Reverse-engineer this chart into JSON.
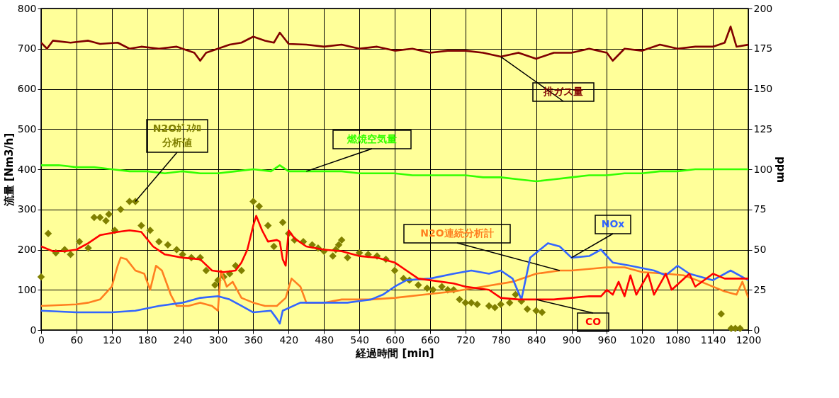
{
  "chart_data": {
    "type": "line",
    "xlabel": "経過時間 [min]",
    "ylabel": "流量 [Nm3/h]",
    "y2label": "ppm",
    "xlim": [
      0,
      1200
    ],
    "xticks": [
      0,
      60,
      120,
      180,
      240,
      300,
      360,
      420,
      480,
      540,
      600,
      660,
      720,
      780,
      840,
      900,
      960,
      1020,
      1080,
      1140,
      1200
    ],
    "ylim": [
      0,
      800
    ],
    "yticks": [
      0,
      100,
      200,
      300,
      400,
      500,
      600,
      700,
      800
    ],
    "y2lim": [
      0,
      200
    ],
    "y2ticks": [
      0,
      25,
      50,
      75,
      100,
      125,
      150,
      175,
      200
    ],
    "grid": true,
    "line_style": "solid",
    "series": [
      {
        "name": "排ガス量",
        "color": "#800000",
        "x": [
          0,
          10,
          20,
          50,
          80,
          100,
          130,
          150,
          170,
          200,
          230,
          260,
          270,
          280,
          320,
          340,
          360,
          380,
          395,
          405,
          420,
          450,
          480,
          510,
          540,
          570,
          600,
          630,
          660,
          690,
          720,
          750,
          780,
          810,
          840,
          870,
          900,
          930,
          960,
          970,
          990,
          1020,
          1050,
          1080,
          1110,
          1140,
          1160,
          1170,
          1180,
          1200
        ],
        "values": [
          715,
          700,
          720,
          715,
          720,
          712,
          715,
          700,
          705,
          700,
          705,
          690,
          670,
          690,
          710,
          715,
          730,
          720,
          715,
          740,
          712,
          710,
          705,
          710,
          700,
          705,
          695,
          700,
          690,
          695,
          695,
          690,
          680,
          690,
          675,
          690,
          690,
          700,
          690,
          670,
          700,
          695,
          710,
          700,
          705,
          705,
          715,
          755,
          705,
          710
        ]
      },
      {
        "name": "燃焼空気量",
        "color": "#33ff00",
        "x": [
          0,
          30,
          60,
          90,
          120,
          150,
          180,
          210,
          240,
          270,
          300,
          330,
          360,
          390,
          405,
          420,
          450,
          480,
          510,
          540,
          570,
          600,
          630,
          660,
          690,
          720,
          750,
          780,
          810,
          840,
          870,
          900,
          930,
          960,
          990,
          1020,
          1050,
          1080,
          1110,
          1140,
          1170,
          1200
        ],
        "values": [
          410,
          410,
          405,
          405,
          400,
          395,
          395,
          390,
          395,
          390,
          390,
          395,
          400,
          395,
          410,
          395,
          395,
          395,
          395,
          390,
          390,
          390,
          385,
          385,
          385,
          385,
          380,
          380,
          375,
          370,
          375,
          380,
          385,
          385,
          390,
          390,
          395,
          395,
          400,
          400,
          400,
          400
        ]
      },
      {
        "name": "N2Oｶﾞｽｸﾛ分析値",
        "type": "scatter",
        "marker": "diamond",
        "axis": "y2",
        "color": "#808000",
        "x": [
          0,
          12,
          25,
          40,
          50,
          65,
          80,
          90,
          100,
          110,
          115,
          125,
          135,
          150,
          160,
          170,
          185,
          200,
          215,
          230,
          240,
          255,
          270,
          280,
          295,
          300,
          310,
          320,
          330,
          340,
          360,
          370,
          385,
          395,
          410,
          420,
          430,
          445,
          460,
          470,
          480,
          495,
          500,
          505,
          510,
          520,
          540,
          555,
          570,
          585,
          600,
          615,
          625,
          640,
          655,
          665,
          680,
          690,
          700,
          710,
          720,
          730,
          740,
          760,
          770,
          780,
          795,
          805,
          815,
          825,
          840,
          850,
          1154,
          1171,
          1178,
          1186
        ],
        "values": [
          33,
          60,
          48,
          50,
          47,
          55,
          51,
          70,
          70,
          68,
          72,
          62,
          75,
          80,
          80,
          65,
          62,
          55,
          53,
          50,
          47,
          45,
          45,
          37,
          28,
          31,
          33,
          35,
          40,
          37,
          80,
          77,
          65,
          52,
          67,
          60,
          56,
          55,
          53,
          51,
          49,
          46,
          50,
          53,
          56,
          45,
          48,
          47,
          46,
          44,
          37,
          32,
          31,
          28,
          26,
          25,
          27,
          25,
          25,
          19,
          17,
          17,
          16,
          15,
          14,
          16,
          17,
          22,
          18,
          13,
          12,
          11,
          10,
          1,
          1,
          1
        ]
      },
      {
        "name": "N2O連続分析計",
        "axis": "y2",
        "color": "#ff7f20",
        "x": [
          0,
          60,
          80,
          100,
          120,
          130,
          135,
          145,
          160,
          175,
          185,
          195,
          205,
          220,
          230,
          250,
          270,
          290,
          300,
          305,
          315,
          325,
          340,
          360,
          380,
          400,
          415,
          425,
          440,
          450,
          480,
          510,
          560,
          600,
          650,
          700,
          750,
          800,
          840,
          880,
          900,
          960,
          990,
          1020,
          1060,
          1090,
          1120,
          1160,
          1180,
          1190,
          1200
        ],
        "values": [
          15,
          16,
          17,
          19,
          27,
          40,
          45,
          44,
          37,
          35,
          25,
          40,
          37,
          22,
          15,
          15,
          17,
          15,
          12,
          37,
          27,
          30,
          20,
          17,
          15,
          15,
          20,
          32,
          27,
          17,
          17,
          19,
          19,
          20,
          22,
          24,
          27,
          30,
          35,
          37,
          37,
          39,
          39,
          36,
          35,
          34,
          30,
          24,
          22,
          30,
          20
        ]
      },
      {
        "name": "NOx",
        "axis": "y2",
        "color": "#3366ff",
        "x": [
          0,
          60,
          120,
          160,
          200,
          240,
          270,
          300,
          320,
          340,
          360,
          390,
          400,
          405,
          410,
          440,
          480,
          520,
          560,
          580,
          600,
          620,
          660,
          700,
          730,
          760,
          780,
          800,
          815,
          830,
          860,
          880,
          900,
          930,
          950,
          970,
          1000,
          1040,
          1060,
          1080,
          1100,
          1140,
          1170,
          1200
        ],
        "values": [
          12,
          11,
          11,
          12,
          15,
          17,
          20,
          21,
          19,
          15,
          11,
          12,
          7,
          4,
          12,
          17,
          17,
          17,
          19,
          22,
          27,
          31,
          32,
          35,
          37,
          35,
          37,
          32,
          19,
          45,
          54,
          52,
          45,
          46,
          50,
          42,
          40,
          37,
          34,
          40,
          35,
          31,
          37,
          31
        ]
      },
      {
        "name": "CO",
        "axis": "y2",
        "color": "#ff0000",
        "x": [
          0,
          20,
          40,
          60,
          80,
          100,
          130,
          150,
          170,
          190,
          210,
          240,
          270,
          290,
          310,
          330,
          340,
          350,
          360,
          365,
          375,
          385,
          400,
          405,
          410,
          415,
          420,
          430,
          450,
          480,
          510,
          540,
          570,
          600,
          620,
          640,
          660,
          700,
          720,
          760,
          780,
          810,
          840,
          870,
          900,
          930,
          950,
          960,
          970,
          980,
          990,
          1000,
          1010,
          1030,
          1040,
          1060,
          1070,
          1100,
          1110,
          1140,
          1160,
          1200
        ],
        "values": [
          52,
          49,
          49,
          50,
          54,
          59,
          61,
          62,
          61,
          52,
          47,
          45,
          44,
          37,
          36,
          37,
          42,
          50,
          65,
          71,
          62,
          55,
          56,
          55,
          44,
          40,
          62,
          57,
          52,
          50,
          49,
          46,
          45,
          42,
          37,
          32,
          31,
          29,
          27,
          25,
          20,
          19,
          19,
          19,
          20,
          21,
          21,
          25,
          22,
          30,
          21,
          34,
          22,
          35,
          22,
          35,
          25,
          35,
          27,
          35,
          32,
          32
        ]
      }
    ]
  }
}
